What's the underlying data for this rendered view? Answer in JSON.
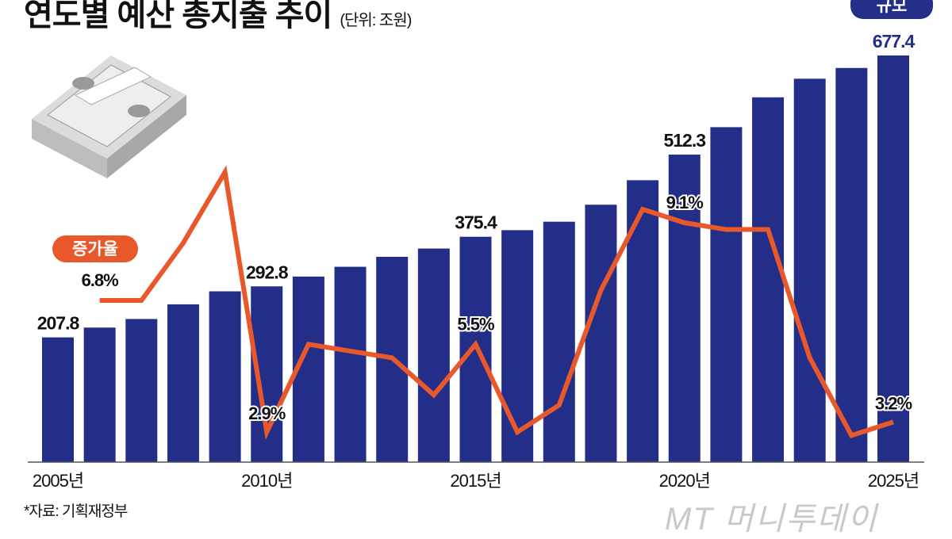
{
  "title": "연도별 예산 총지출 추이",
  "unit": "(단위: 조원)",
  "source": "*자료: 기획재정부",
  "logo": "MT 머니투데이",
  "chart_data": {
    "type": "bar+line",
    "title": "연도별 예산 총지출 추이",
    "unit": "조원",
    "categories": [
      "2005",
      "2006",
      "2007",
      "2008",
      "2009",
      "2010",
      "2011",
      "2012",
      "2013",
      "2014",
      "2015",
      "2016",
      "2017",
      "2018",
      "2019",
      "2020",
      "2021",
      "2022",
      "2023",
      "2024",
      "2025"
    ],
    "x_tick_labels": {
      "0": "2005년",
      "5": "2010년",
      "10": "2015년",
      "15": "2020년",
      "20": "2025년"
    },
    "series": [
      {
        "name": "규모",
        "type": "bar",
        "color": "#232E88",
        "values": [
          207.8,
          224.1,
          238.4,
          262.8,
          284.5,
          292.8,
          309.1,
          325.4,
          342.0,
          355.8,
          375.4,
          386.4,
          400.5,
          428.8,
          469.6,
          512.3,
          558.0,
          607.7,
          638.7,
          656.6,
          677.4
        ],
        "labels": {
          "0": "207.8",
          "5": "292.8",
          "10": "375.4",
          "15": "512.3",
          "20": "677.4"
        }
      },
      {
        "name": "증가율",
        "type": "line",
        "color": "#E9582A",
        "unit": "%",
        "values": [
          null,
          6.8,
          6.8,
          8.5,
          10.6,
          2.9,
          5.5,
          5.3,
          5.1,
          4.0,
          5.5,
          2.9,
          3.7,
          7.1,
          9.5,
          9.1,
          8.9,
          8.9,
          5.1,
          2.8,
          3.2
        ],
        "labels": {
          "1": "6.8%",
          "5": "2.9%",
          "10": "5.5%",
          "15": "9.1%",
          "20": "3.2%"
        }
      }
    ],
    "ylim_bar": [
      0,
      677.4
    ],
    "grid": false,
    "legend": [
      "규모",
      "증가율"
    ]
  }
}
